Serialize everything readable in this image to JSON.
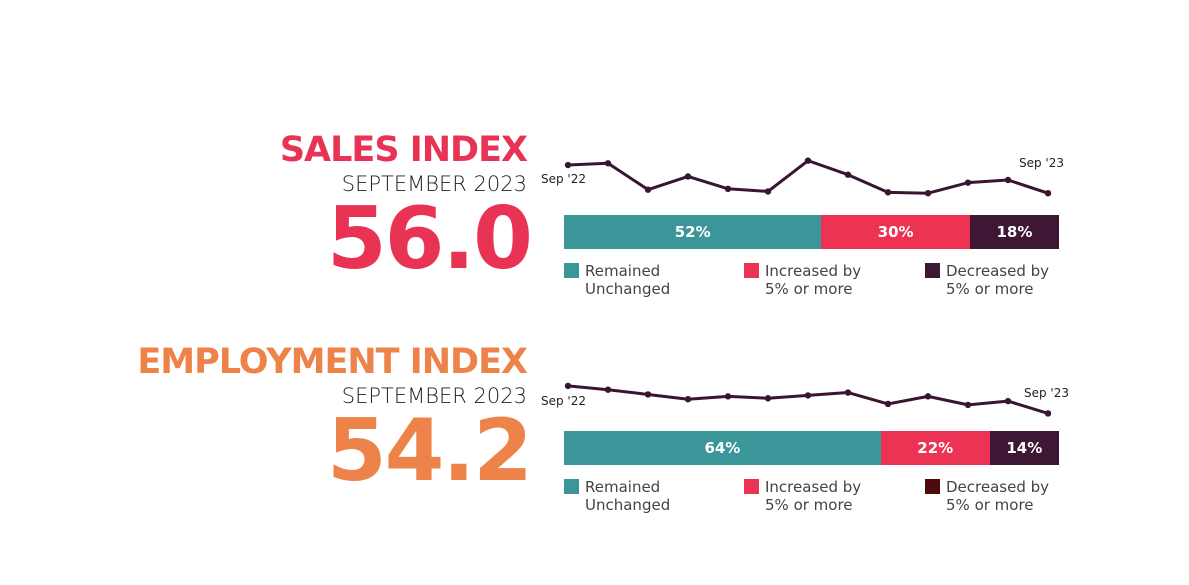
{
  "chart_data": [
    {
      "type": "bar",
      "title": "SALES INDEX",
      "subtitle": "SEPTEMBER 2023",
      "headline_value": "56.0",
      "title_color": "#e83355",
      "sparkline": {
        "type": "line",
        "start_label": "Sep '22",
        "end_label": "Sep '23",
        "relative_values": [
          42,
          44,
          14,
          29,
          15,
          12,
          47,
          31,
          11,
          10,
          22,
          25,
          10
        ],
        "color": "#3a1530"
      },
      "stacked_bar": [
        {
          "name": "Remained\nUnchanged",
          "value": 52,
          "label": "52%",
          "color": "#3b9699",
          "legend_color": "#3b9699"
        },
        {
          "name": "Increased by\n5% or more",
          "value": 30,
          "label": "30%",
          "color": "#ec3354",
          "legend_color": "#ec3354"
        },
        {
          "name": "Decreased by\n5% or more",
          "value": 18,
          "label": "18%",
          "color": "#3d1733",
          "legend_color": "#3d1733"
        }
      ]
    },
    {
      "type": "bar",
      "title": "EMPLOYMENT INDEX",
      "subtitle": "SEPTEMBER 2023",
      "headline_value": "54.2",
      "title_color": "#ee8349",
      "sparkline": {
        "type": "line",
        "start_label": "Sep '22",
        "end_label": "Sep '23",
        "relative_values": [
          38,
          34,
          29,
          24,
          27,
          25,
          28,
          31,
          19,
          27,
          18,
          22,
          9
        ],
        "color": "#3a1530"
      },
      "stacked_bar": [
        {
          "name": "Remained\nUnchanged",
          "value": 64,
          "label": "64%",
          "color": "#3b9699",
          "legend_color": "#3b9699"
        },
        {
          "name": "Increased by\n5% or more",
          "value": 22,
          "label": "22%",
          "color": "#ec3354",
          "legend_color": "#ec3354"
        },
        {
          "name": "Decreased by\n5% or more",
          "value": 14,
          "label": "14%",
          "color": "#3d1733",
          "legend_color": "#4d0a0f"
        }
      ]
    }
  ]
}
